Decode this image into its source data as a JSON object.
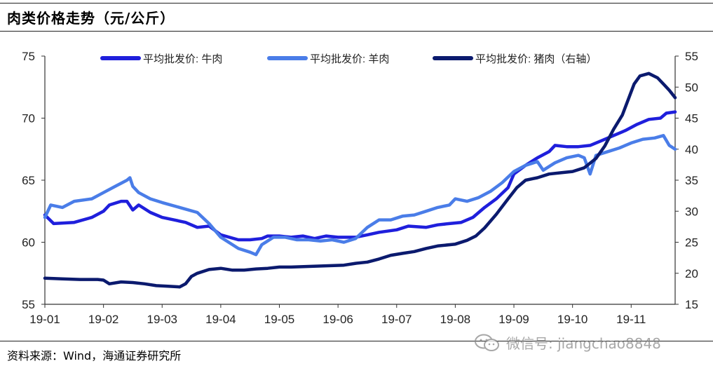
{
  "header": {
    "title": "肉类价格走势（元/公斤）"
  },
  "footer": {
    "source": "资料来源：Wind，海通证券研究所",
    "watermark": "微信号: jiangchao8848",
    "watermark_icon": "wechat-icon"
  },
  "chart_data": {
    "type": "line",
    "title": "肉类价格走势（元/公斤）",
    "x_ticks": [
      "19-01",
      "19-02",
      "19-03",
      "19-04",
      "19-05",
      "19-06",
      "19-07",
      "19-08",
      "19-09",
      "19-10",
      "19-11"
    ],
    "x_range": [
      0,
      10.75
    ],
    "y_left": {
      "min": 55,
      "max": 75,
      "ticks": [
        55,
        60,
        65,
        70,
        75
      ]
    },
    "y_right": {
      "min": 15,
      "max": 55,
      "ticks": [
        15,
        20,
        25,
        30,
        35,
        40,
        45,
        50,
        55
      ]
    },
    "grid": false,
    "legend_position": "top",
    "series": [
      {
        "name": "平均批发价: 牛肉",
        "axis": "left",
        "color": "#1f1fdc",
        "points": [
          [
            0,
            62.2
          ],
          [
            0.15,
            61.5
          ],
          [
            0.5,
            61.6
          ],
          [
            0.8,
            62.0
          ],
          [
            1.0,
            62.5
          ],
          [
            1.1,
            63.0
          ],
          [
            1.3,
            63.3
          ],
          [
            1.4,
            63.3
          ],
          [
            1.5,
            62.6
          ],
          [
            1.6,
            63.0
          ],
          [
            1.8,
            62.4
          ],
          [
            2.0,
            62.0
          ],
          [
            2.2,
            61.8
          ],
          [
            2.4,
            61.6
          ],
          [
            2.6,
            61.2
          ],
          [
            2.8,
            61.3
          ],
          [
            3.0,
            60.6
          ],
          [
            3.3,
            60.2
          ],
          [
            3.5,
            60.2
          ],
          [
            3.7,
            60.3
          ],
          [
            3.8,
            60.5
          ],
          [
            4.0,
            60.5
          ],
          [
            4.2,
            60.4
          ],
          [
            4.4,
            60.5
          ],
          [
            4.6,
            60.3
          ],
          [
            4.8,
            60.5
          ],
          [
            5.0,
            60.4
          ],
          [
            5.3,
            60.4
          ],
          [
            5.5,
            60.6
          ],
          [
            5.7,
            60.8
          ],
          [
            6.0,
            61.0
          ],
          [
            6.2,
            61.3
          ],
          [
            6.5,
            61.2
          ],
          [
            6.7,
            61.4
          ],
          [
            6.9,
            61.5
          ],
          [
            7.1,
            61.6
          ],
          [
            7.3,
            62.0
          ],
          [
            7.5,
            62.8
          ],
          [
            7.7,
            63.5
          ],
          [
            7.9,
            64.4
          ],
          [
            8.0,
            65.5
          ],
          [
            8.2,
            66.2
          ],
          [
            8.4,
            66.8
          ],
          [
            8.6,
            67.3
          ],
          [
            8.7,
            67.8
          ],
          [
            8.9,
            67.7
          ],
          [
            9.1,
            67.7
          ],
          [
            9.3,
            67.8
          ],
          [
            9.5,
            68.2
          ],
          [
            9.7,
            68.6
          ],
          [
            9.9,
            69.0
          ],
          [
            10.1,
            69.5
          ],
          [
            10.3,
            69.9
          ],
          [
            10.5,
            70.0
          ],
          [
            10.6,
            70.4
          ],
          [
            10.75,
            70.5
          ]
        ]
      },
      {
        "name": "平均批发价: 羊肉",
        "axis": "left",
        "color": "#4a7de8",
        "points": [
          [
            0,
            62.0
          ],
          [
            0.1,
            63.0
          ],
          [
            0.3,
            62.8
          ],
          [
            0.5,
            63.3
          ],
          [
            0.8,
            63.5
          ],
          [
            1.0,
            64.0
          ],
          [
            1.2,
            64.5
          ],
          [
            1.4,
            65.0
          ],
          [
            1.45,
            65.2
          ],
          [
            1.5,
            64.5
          ],
          [
            1.6,
            64.0
          ],
          [
            1.8,
            63.5
          ],
          [
            2.0,
            63.2
          ],
          [
            2.3,
            62.8
          ],
          [
            2.6,
            62.4
          ],
          [
            2.8,
            61.5
          ],
          [
            3.0,
            60.4
          ],
          [
            3.2,
            59.8
          ],
          [
            3.3,
            59.5
          ],
          [
            3.5,
            59.2
          ],
          [
            3.6,
            59.0
          ],
          [
            3.7,
            59.8
          ],
          [
            3.9,
            60.4
          ],
          [
            4.1,
            60.4
          ],
          [
            4.3,
            60.2
          ],
          [
            4.5,
            60.2
          ],
          [
            4.7,
            60.1
          ],
          [
            4.9,
            60.2
          ],
          [
            5.1,
            60.0
          ],
          [
            5.3,
            60.3
          ],
          [
            5.5,
            61.2
          ],
          [
            5.7,
            61.8
          ],
          [
            5.9,
            61.8
          ],
          [
            6.1,
            62.1
          ],
          [
            6.3,
            62.2
          ],
          [
            6.5,
            62.5
          ],
          [
            6.7,
            62.8
          ],
          [
            6.9,
            63.0
          ],
          [
            7.0,
            63.5
          ],
          [
            7.2,
            63.3
          ],
          [
            7.4,
            63.6
          ],
          [
            7.6,
            64.1
          ],
          [
            7.8,
            64.8
          ],
          [
            8.0,
            65.7
          ],
          [
            8.2,
            66.2
          ],
          [
            8.4,
            66.5
          ],
          [
            8.5,
            65.8
          ],
          [
            8.7,
            66.4
          ],
          [
            8.9,
            66.8
          ],
          [
            9.1,
            67.0
          ],
          [
            9.2,
            66.8
          ],
          [
            9.3,
            65.5
          ],
          [
            9.4,
            67.0
          ],
          [
            9.6,
            67.3
          ],
          [
            9.8,
            67.6
          ],
          [
            10.0,
            68.0
          ],
          [
            10.2,
            68.3
          ],
          [
            10.4,
            68.4
          ],
          [
            10.55,
            68.6
          ],
          [
            10.65,
            67.8
          ],
          [
            10.75,
            67.5
          ]
        ]
      },
      {
        "name": "平均批发价: 猪肉（右轴）",
        "axis": "right",
        "color": "#0b1a6e",
        "points": [
          [
            0,
            19.2
          ],
          [
            0.3,
            19.1
          ],
          [
            0.6,
            19.0
          ],
          [
            0.9,
            19.0
          ],
          [
            1.0,
            18.9
          ],
          [
            1.1,
            18.3
          ],
          [
            1.3,
            18.6
          ],
          [
            1.5,
            18.5
          ],
          [
            1.7,
            18.3
          ],
          [
            1.9,
            18.0
          ],
          [
            2.1,
            17.9
          ],
          [
            2.3,
            17.8
          ],
          [
            2.4,
            18.3
          ],
          [
            2.5,
            19.5
          ],
          [
            2.6,
            20.0
          ],
          [
            2.8,
            20.6
          ],
          [
            3.0,
            20.8
          ],
          [
            3.2,
            20.5
          ],
          [
            3.4,
            20.5
          ],
          [
            3.6,
            20.7
          ],
          [
            3.8,
            20.8
          ],
          [
            4.0,
            21.0
          ],
          [
            4.2,
            21.0
          ],
          [
            4.5,
            21.1
          ],
          [
            4.8,
            21.2
          ],
          [
            5.1,
            21.3
          ],
          [
            5.3,
            21.6
          ],
          [
            5.5,
            21.8
          ],
          [
            5.7,
            22.3
          ],
          [
            5.9,
            22.9
          ],
          [
            6.1,
            23.2
          ],
          [
            6.3,
            23.5
          ],
          [
            6.5,
            24.0
          ],
          [
            6.7,
            24.4
          ],
          [
            7.0,
            24.7
          ],
          [
            7.2,
            25.3
          ],
          [
            7.35,
            26.0
          ],
          [
            7.5,
            27.3
          ],
          [
            7.7,
            29.5
          ],
          [
            7.9,
            32.0
          ],
          [
            8.05,
            33.8
          ],
          [
            8.2,
            35.0
          ],
          [
            8.4,
            35.4
          ],
          [
            8.6,
            36.0
          ],
          [
            8.8,
            36.2
          ],
          [
            9.0,
            36.4
          ],
          [
            9.2,
            37.0
          ],
          [
            9.4,
            38.5
          ],
          [
            9.55,
            40.5
          ],
          [
            9.7,
            43.2
          ],
          [
            9.85,
            45.5
          ],
          [
            9.95,
            48.0
          ],
          [
            10.05,
            50.5
          ],
          [
            10.15,
            51.8
          ],
          [
            10.3,
            52.2
          ],
          [
            10.45,
            51.5
          ],
          [
            10.55,
            50.5
          ],
          [
            10.65,
            49.5
          ],
          [
            10.75,
            48.3
          ]
        ]
      }
    ]
  }
}
